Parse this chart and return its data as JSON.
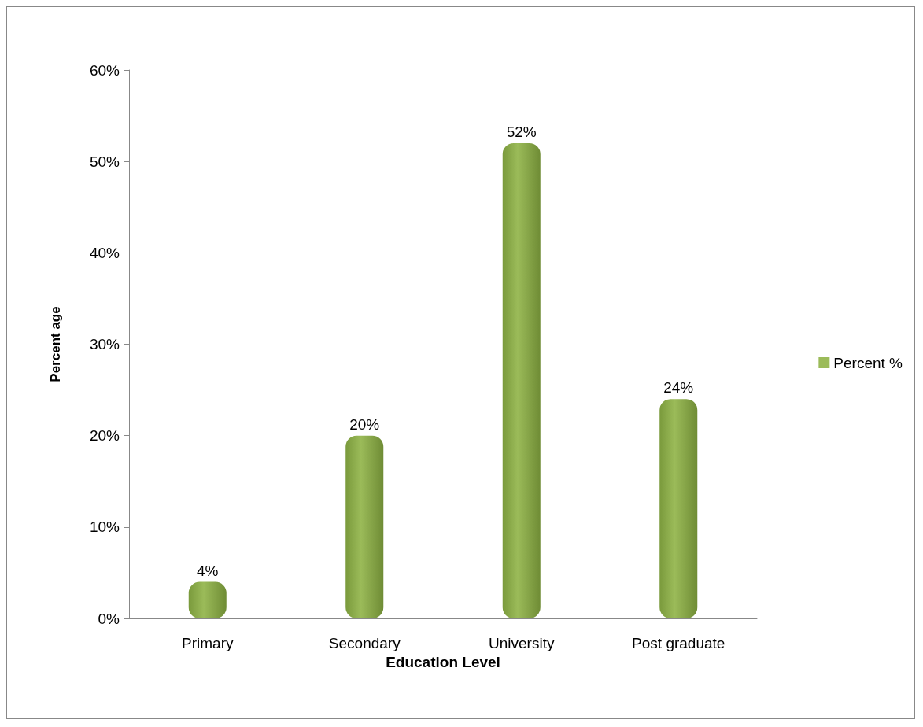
{
  "chart_data": {
    "type": "bar",
    "xlabel": "Education Level",
    "ylabel": "Percent age",
    "categories": [
      "Primary",
      "Secondary",
      "University",
      "Post graduate"
    ],
    "series": [
      {
        "name": "Percent %",
        "color": "#9bbb59",
        "values": [
          4,
          20,
          52,
          24
        ],
        "value_labels": [
          "4%",
          "20%",
          "52%",
          "24%"
        ]
      }
    ],
    "ylim": [
      0,
      60
    ],
    "yticks": [
      {
        "value": 0,
        "label": "0%"
      },
      {
        "value": 10,
        "label": "10%"
      },
      {
        "value": 20,
        "label": "20%"
      },
      {
        "value": 30,
        "label": "30%"
      },
      {
        "value": 40,
        "label": "40%"
      },
      {
        "value": 50,
        "label": "50%"
      },
      {
        "value": 60,
        "label": "60%"
      }
    ],
    "grid": false,
    "legend": "right"
  }
}
